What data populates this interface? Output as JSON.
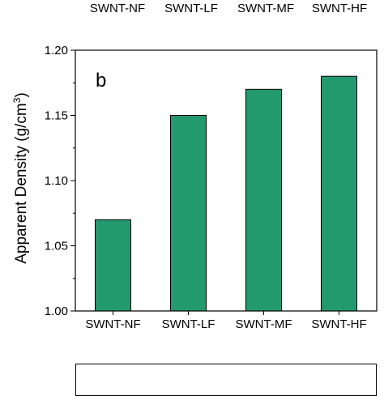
{
  "top_category_labels": [
    "SWNT-NF",
    "SWNT-LF",
    "SWNT-MF",
    "SWNT-HF"
  ],
  "colors": {
    "bar": "#23996f",
    "axis": "#000000"
  },
  "chart_data": {
    "type": "bar",
    "panel_label": "b",
    "categories": [
      "SWNT-NF",
      "SWNT-LF",
      "SWNT-MF",
      "SWNT-HF"
    ],
    "values": [
      1.07,
      1.15,
      1.17,
      1.18
    ],
    "ylabel": "Apparent Density (g/cm",
    "ylabel_sup": "3",
    "ylabel_close": ")",
    "ylim": [
      1.0,
      1.2
    ],
    "yticks": [
      "1.00",
      "1.05",
      "1.10",
      "1.15",
      "1.20"
    ],
    "grid": false
  }
}
